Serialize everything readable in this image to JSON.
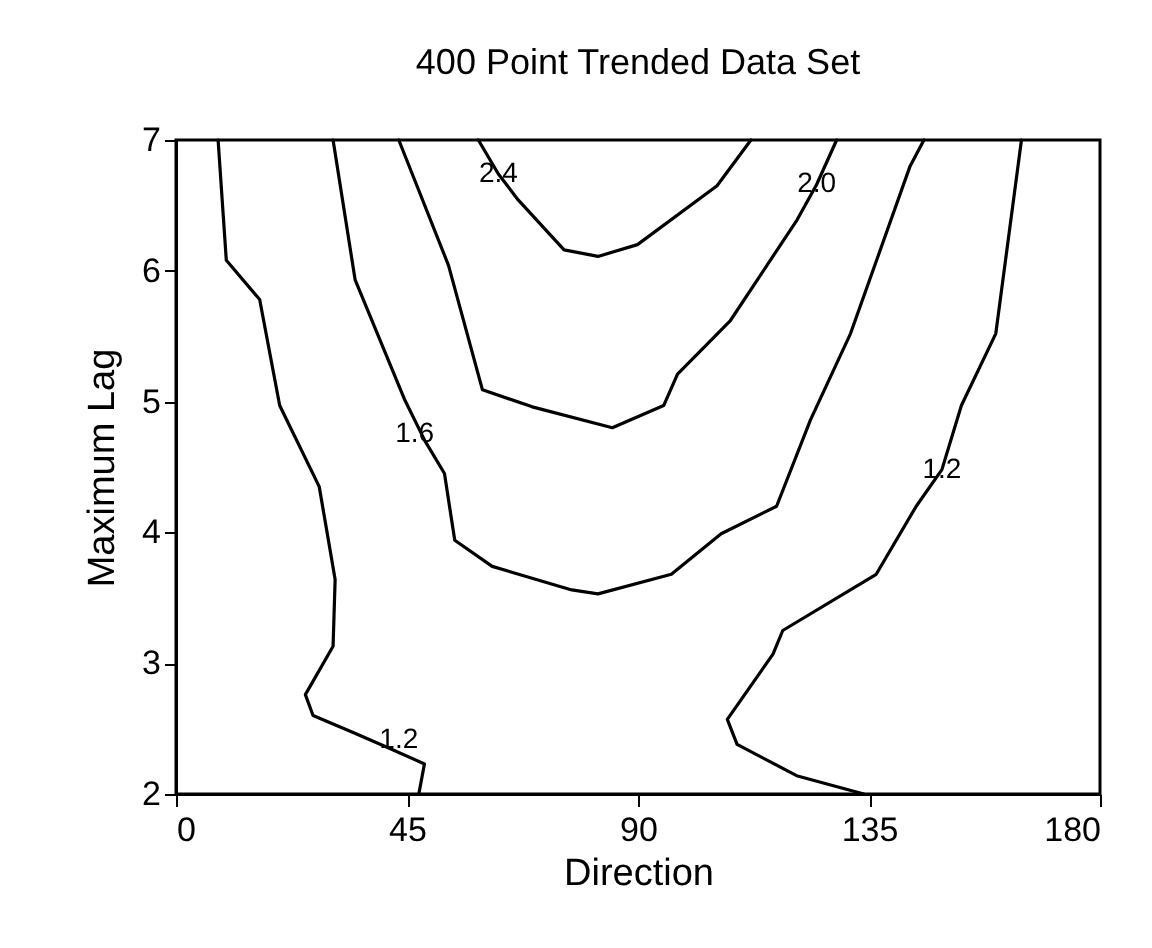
{
  "chart_data": {
    "type": "line",
    "title": "400 Point Trended Data Set",
    "xlabel": "Direction",
    "ylabel": "Maximum Lag",
    "xlim": [
      0,
      180
    ],
    "xticks": [
      0,
      45,
      90,
      135,
      180
    ],
    "ylim": [
      2,
      7
    ],
    "yticks": [
      2,
      3,
      4,
      5,
      6,
      7
    ],
    "grid": false,
    "legend": false,
    "marker": "none",
    "line_style": "solid",
    "series": [
      {
        "color": "#000000",
        "x": [
          8.2,
          9.8,
          16.3,
          20.2,
          27.9,
          31,
          30.6,
          25.2,
          26.7,
          34.5,
          41,
          48.4,
          47.3
        ],
        "values": [
          7,
          6.08,
          5.78,
          4.97,
          4.35,
          3.64,
          3.13,
          2.76,
          2.6,
          2.47,
          2.36,
          2.23,
          2
        ]
      },
      {
        "color": "#000000",
        "x": [
          30.6,
          34.9,
          44.6,
          48.5,
          52.3,
          54.3,
          61.6,
          77.1,
          82.2,
          96.5,
          106.2,
          117,
          123.6,
          131.4,
          143,
          145.7
        ],
        "values": [
          7,
          5.93,
          5.01,
          4.7,
          4.45,
          3.94,
          3.74,
          3.56,
          3.53,
          3.68,
          3.99,
          4.2,
          4.86,
          5.52,
          6.8,
          7
        ]
      },
      {
        "color": "#000000",
        "x": [
          43.4,
          53.1,
          59.7,
          69.4,
          85,
          95,
          97.7,
          108,
          121,
          124.8,
          128.7
        ],
        "values": [
          7,
          6.04,
          5.09,
          4.96,
          4.8,
          4.97,
          5.21,
          5.62,
          6.39,
          6.66,
          7
        ]
      },
      {
        "color": "#000000",
        "x": [
          58.9,
          62.8,
          66.7,
          75.6,
          82.2,
          89.9,
          105.4,
          112
        ],
        "values": [
          7,
          6.74,
          6.54,
          6.16,
          6.11,
          6.2,
          6.65,
          7
        ]
      },
      {
        "color": "#000000",
        "x": [
          164.7,
          159.7,
          153,
          149.2,
          144.2,
          136.4,
          118.2,
          116.3,
          107.4,
          109.3,
          120.9,
          134
        ],
        "values": [
          7,
          5.52,
          4.97,
          4.48,
          4.2,
          3.68,
          3.25,
          3.07,
          2.57,
          2.38,
          2.14,
          2
        ]
      }
    ],
    "annotations": [
      {
        "text": "2.4",
        "x": 62.8,
        "y": 6.74
      },
      {
        "text": "2.0",
        "x": 124.8,
        "y": 6.66
      },
      {
        "text": "1.6",
        "x": 46.5,
        "y": 4.75
      },
      {
        "text": "1.2",
        "x": 43.4,
        "y": 2.41
      },
      {
        "text": "1.2",
        "x": 149.2,
        "y": 4.48
      }
    ]
  }
}
